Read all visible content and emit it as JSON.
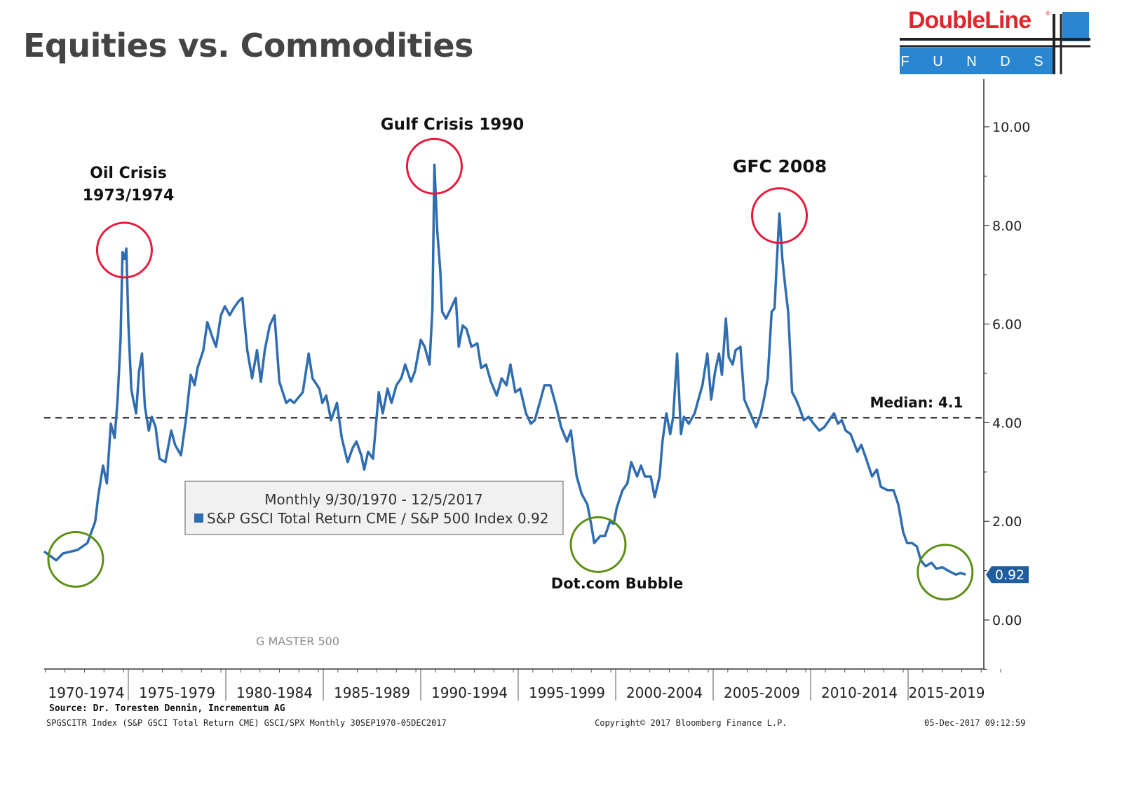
{
  "title": "Equities vs. Commodities",
  "logo": {
    "brand": "DoubleLine",
    "registered": "®",
    "sub": "F U N D S",
    "brand_color": "#e0262d",
    "box_color": "#2a86d1"
  },
  "chart_data": {
    "type": "line",
    "series": [
      {
        "name": "S&P GSCI Total Return CME / S&P 500 Index",
        "color": "#2f6db0",
        "points": [
          [
            1970.68,
            1.39
          ],
          [
            1971.3,
            1.21
          ],
          [
            1971.65,
            1.35
          ],
          [
            1972.4,
            1.42
          ],
          [
            1972.9,
            1.56
          ],
          [
            1973.3,
            1.99
          ],
          [
            1973.45,
            2.49
          ],
          [
            1973.7,
            3.13
          ],
          [
            1973.9,
            2.77
          ],
          [
            1974.1,
            3.98
          ],
          [
            1974.3,
            3.69
          ],
          [
            1974.45,
            4.47
          ],
          [
            1974.6,
            5.68
          ],
          [
            1974.7,
            7.46
          ],
          [
            1974.8,
            7.32
          ],
          [
            1974.9,
            7.53
          ],
          [
            1975.0,
            6.04
          ],
          [
            1975.15,
            4.69
          ],
          [
            1975.25,
            4.47
          ],
          [
            1975.4,
            4.19
          ],
          [
            1975.55,
            5.04
          ],
          [
            1975.7,
            5.4
          ],
          [
            1975.85,
            4.33
          ],
          [
            1976.05,
            3.84
          ],
          [
            1976.2,
            4.12
          ],
          [
            1976.4,
            3.91
          ],
          [
            1976.6,
            3.27
          ],
          [
            1976.9,
            3.2
          ],
          [
            1977.2,
            3.84
          ],
          [
            1977.4,
            3.55
          ],
          [
            1977.7,
            3.34
          ],
          [
            1977.95,
            4.05
          ],
          [
            1978.2,
            4.97
          ],
          [
            1978.4,
            4.76
          ],
          [
            1978.55,
            5.11
          ],
          [
            1978.85,
            5.47
          ],
          [
            1979.05,
            6.04
          ],
          [
            1979.3,
            5.75
          ],
          [
            1979.5,
            5.54
          ],
          [
            1979.75,
            6.18
          ],
          [
            1979.95,
            6.36
          ],
          [
            1980.2,
            6.18
          ],
          [
            1980.4,
            6.32
          ],
          [
            1980.65,
            6.46
          ],
          [
            1980.85,
            6.53
          ],
          [
            1981.1,
            5.47
          ],
          [
            1981.35,
            4.9
          ],
          [
            1981.6,
            5.47
          ],
          [
            1981.8,
            4.83
          ],
          [
            1982.0,
            5.47
          ],
          [
            1982.25,
            5.97
          ],
          [
            1982.5,
            6.18
          ],
          [
            1982.75,
            4.83
          ],
          [
            1983.1,
            4.4
          ],
          [
            1983.3,
            4.47
          ],
          [
            1983.5,
            4.4
          ],
          [
            1983.95,
            4.62
          ],
          [
            1984.25,
            5.4
          ],
          [
            1984.45,
            4.9
          ],
          [
            1984.8,
            4.69
          ],
          [
            1984.95,
            4.4
          ],
          [
            1985.15,
            4.55
          ],
          [
            1985.4,
            4.05
          ],
          [
            1985.7,
            4.4
          ],
          [
            1985.95,
            3.69
          ],
          [
            1986.25,
            3.2
          ],
          [
            1986.5,
            3.48
          ],
          [
            1986.7,
            3.62
          ],
          [
            1986.95,
            3.34
          ],
          [
            1987.1,
            3.05
          ],
          [
            1987.3,
            3.41
          ],
          [
            1987.55,
            3.27
          ],
          [
            1987.85,
            4.62
          ],
          [
            1988.05,
            4.19
          ],
          [
            1988.3,
            4.69
          ],
          [
            1988.5,
            4.4
          ],
          [
            1988.75,
            4.76
          ],
          [
            1989.0,
            4.9
          ],
          [
            1989.2,
            5.18
          ],
          [
            1989.5,
            4.83
          ],
          [
            1989.7,
            5.04
          ],
          [
            1990.0,
            5.68
          ],
          [
            1990.2,
            5.54
          ],
          [
            1990.45,
            5.18
          ],
          [
            1990.6,
            6.32
          ],
          [
            1990.7,
            9.23
          ],
          [
            1990.85,
            7.88
          ],
          [
            1991.0,
            7.1
          ],
          [
            1991.1,
            6.25
          ],
          [
            1991.3,
            6.11
          ],
          [
            1991.55,
            6.32
          ],
          [
            1991.8,
            6.53
          ],
          [
            1991.95,
            5.54
          ],
          [
            1992.15,
            5.97
          ],
          [
            1992.35,
            5.9
          ],
          [
            1992.6,
            5.54
          ],
          [
            1992.9,
            5.61
          ],
          [
            1993.1,
            5.11
          ],
          [
            1993.35,
            5.18
          ],
          [
            1993.6,
            4.83
          ],
          [
            1993.9,
            4.55
          ],
          [
            1994.15,
            4.9
          ],
          [
            1994.4,
            4.76
          ],
          [
            1994.6,
            5.18
          ],
          [
            1994.85,
            4.62
          ],
          [
            1995.1,
            4.69
          ],
          [
            1995.4,
            4.19
          ],
          [
            1995.65,
            3.98
          ],
          [
            1995.85,
            4.05
          ],
          [
            1996.1,
            4.4
          ],
          [
            1996.35,
            4.76
          ],
          [
            1996.65,
            4.76
          ],
          [
            1996.95,
            4.33
          ],
          [
            1997.2,
            3.91
          ],
          [
            1997.5,
            3.62
          ],
          [
            1997.7,
            3.84
          ],
          [
            1998.0,
            2.91
          ],
          [
            1998.25,
            2.56
          ],
          [
            1998.55,
            2.34
          ],
          [
            1998.75,
            1.92
          ],
          [
            1998.9,
            1.56
          ],
          [
            1999.2,
            1.7
          ],
          [
            1999.45,
            1.7
          ],
          [
            1999.7,
            1.99
          ],
          [
            1999.9,
            1.95
          ],
          [
            2000.05,
            2.27
          ],
          [
            2000.35,
            2.63
          ],
          [
            2000.6,
            2.77
          ],
          [
            2000.8,
            3.2
          ],
          [
            2001.1,
            2.91
          ],
          [
            2001.3,
            3.13
          ],
          [
            2001.5,
            2.91
          ],
          [
            2001.8,
            2.91
          ],
          [
            2002.0,
            2.49
          ],
          [
            2002.25,
            2.91
          ],
          [
            2002.4,
            3.62
          ],
          [
            2002.6,
            4.19
          ],
          [
            2002.8,
            3.77
          ],
          [
            2002.95,
            4.12
          ],
          [
            2003.15,
            5.4
          ],
          [
            2003.35,
            3.77
          ],
          [
            2003.5,
            4.12
          ],
          [
            2003.75,
            3.98
          ],
          [
            2004.05,
            4.19
          ],
          [
            2004.3,
            4.55
          ],
          [
            2004.45,
            4.76
          ],
          [
            2004.7,
            5.4
          ],
          [
            2004.9,
            4.47
          ],
          [
            2005.1,
            5.04
          ],
          [
            2005.3,
            5.4
          ],
          [
            2005.45,
            4.97
          ],
          [
            2005.65,
            6.11
          ],
          [
            2005.8,
            5.33
          ],
          [
            2006.0,
            5.18
          ],
          [
            2006.15,
            5.47
          ],
          [
            2006.4,
            5.54
          ],
          [
            2006.6,
            4.47
          ],
          [
            2006.9,
            4.19
          ],
          [
            2007.2,
            3.91
          ],
          [
            2007.45,
            4.19
          ],
          [
            2007.6,
            4.47
          ],
          [
            2007.8,
            4.9
          ],
          [
            2008.0,
            6.25
          ],
          [
            2008.15,
            6.32
          ],
          [
            2008.25,
            7.17
          ],
          [
            2008.4,
            8.24
          ],
          [
            2008.55,
            7.32
          ],
          [
            2008.7,
            6.75
          ],
          [
            2008.85,
            6.25
          ],
          [
            2009.05,
            4.62
          ],
          [
            2009.25,
            4.47
          ],
          [
            2009.4,
            4.33
          ],
          [
            2009.65,
            4.05
          ],
          [
            2009.9,
            4.12
          ],
          [
            2010.15,
            3.98
          ],
          [
            2010.45,
            3.84
          ],
          [
            2010.7,
            3.91
          ],
          [
            2010.95,
            4.05
          ],
          [
            2011.2,
            4.19
          ],
          [
            2011.4,
            3.98
          ],
          [
            2011.6,
            4.05
          ],
          [
            2011.8,
            3.84
          ],
          [
            2012.05,
            3.77
          ],
          [
            2012.4,
            3.41
          ],
          [
            2012.6,
            3.55
          ],
          [
            2012.85,
            3.27
          ],
          [
            2013.15,
            2.91
          ],
          [
            2013.4,
            3.05
          ],
          [
            2013.6,
            2.7
          ],
          [
            2013.95,
            2.63
          ],
          [
            2014.25,
            2.63
          ],
          [
            2014.5,
            2.34
          ],
          [
            2014.75,
            1.78
          ],
          [
            2014.95,
            1.56
          ],
          [
            2015.2,
            1.56
          ],
          [
            2015.45,
            1.49
          ],
          [
            2015.65,
            1.21
          ],
          [
            2015.9,
            1.09
          ],
          [
            2016.2,
            1.16
          ],
          [
            2016.45,
            1.04
          ],
          [
            2016.75,
            1.07
          ],
          [
            2017.1,
            0.99
          ],
          [
            2017.45,
            0.92
          ],
          [
            2017.7,
            0.95
          ],
          [
            2017.95,
            0.92
          ]
        ]
      }
    ],
    "xlim": [
      1970,
      2020
    ],
    "ylim": [
      -1,
      11
    ],
    "y_ticks": [
      0,
      2,
      4,
      6,
      8,
      10
    ],
    "y_tick_labels": [
      "0.00",
      "2.00",
      "4.00",
      "6.00",
      "8.00",
      "10.00"
    ],
    "x_categories": [
      "1970-1974",
      "1975-1979",
      "1980-1984",
      "1985-1989",
      "1990-1994",
      "1995-1999",
      "2000-2004",
      "2005-2009",
      "2010-2014",
      "2015-2019"
    ],
    "median": {
      "value": 4.1,
      "label": "Median: 4.1"
    },
    "last_value": {
      "value": 0.92,
      "label": "0.92"
    },
    "legend": {
      "period": "Monthly 9/30/1970 - 12/5/2017",
      "entry": "S&P GSCI Total Return CME / S&P 500 Index 0.92",
      "placement": "bottom-center"
    },
    "annotations": [
      {
        "lines": [
          "Oil Crisis",
          "1973/1974"
        ],
        "x": 1974.8,
        "y": 7.5,
        "type": "peak"
      },
      {
        "lines": [
          "Gulf Crisis 1990"
        ],
        "x": 1990.7,
        "y": 9.2,
        "type": "peak"
      },
      {
        "lines": [
          "GFC 2008"
        ],
        "x": 2008.4,
        "y": 8.2,
        "type": "peak"
      },
      {
        "lines": [
          "Dot.com Bubble"
        ],
        "x": 1999.1,
        "y": 1.6,
        "type": "trough"
      },
      {
        "lines": [],
        "x": 1972.3,
        "y": 1.3,
        "type": "trough"
      },
      {
        "lines": [],
        "x": 2016.9,
        "y": 1.04,
        "type": "trough"
      }
    ],
    "watermark": "G MASTER 500",
    "title": "Equities vs. Commodities"
  },
  "footer": {
    "source": "Source: Dr. Toresten Dennin, Incrementum AG",
    "index_desc": "SPGSCITR Index (S&P GSCI Total Return CME) GSCI/SPX  Monthly 30SEP1970-05DEC2017",
    "copyright": "Copyright© 2017 Bloomberg Finance L.P.",
    "timestamp": "05-Dec-2017 09:12:59"
  }
}
